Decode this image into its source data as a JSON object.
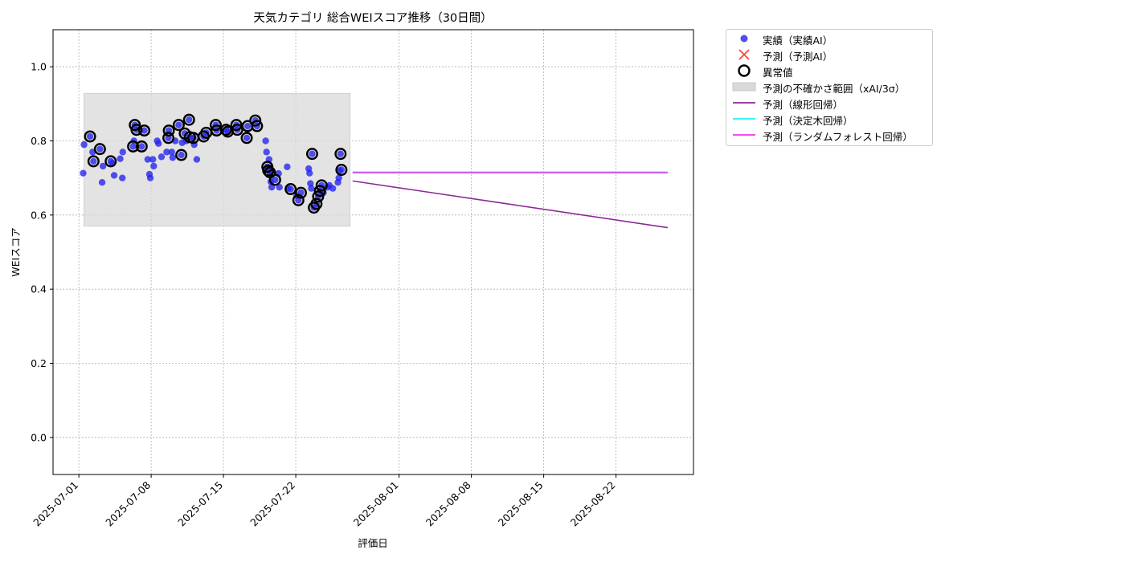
{
  "chart_data": {
    "type": "scatter",
    "title": "天気カテゴリ 総合WEIスコア推移（30日間）",
    "xlabel": "評価日",
    "ylabel": "WEIスコア",
    "xlim": [
      "2025-06-28T12:00",
      "2025-08-29T12:00"
    ],
    "ylim": [
      -0.1,
      1.1
    ],
    "y_ticks": [
      "0.0",
      "0.2",
      "0.4",
      "0.6",
      "0.8",
      "1.0"
    ],
    "x_ticks": [
      "2025-07-01",
      "2025-07-08",
      "2025-07-15",
      "2025-07-22",
      "2025-08-01",
      "2025-08-08",
      "2025-08-15",
      "2025-08-22"
    ],
    "grid": true,
    "legend_position": "outside-top-right",
    "colors": {
      "actual": "#2222ee",
      "predicted": "#ff4444",
      "anomaly": "#000000",
      "uncertainty": "#d9d9d9",
      "linear": "#8b2a96",
      "tree": "#22f2f2",
      "forest": "#ee33ee"
    },
    "uncertainty_band": {
      "x_start": "2025-07-01T12:00",
      "x_end": "2025-07-27T06:00",
      "y_low": 0.57,
      "y_high": 0.928
    },
    "series": [
      {
        "name": "実績（実績AI）",
        "kind": "scatter",
        "points": [
          [
            "2025-07-01T10:00",
            0.713
          ],
          [
            "2025-07-01T12:00",
            0.79
          ],
          [
            "2025-07-02T02:00",
            0.812
          ],
          [
            "2025-07-02T10:00",
            0.745
          ],
          [
            "2025-07-02T08:00",
            0.77
          ],
          [
            "2025-07-03T01:00",
            0.778
          ],
          [
            "2025-07-03T08:00",
            0.732
          ],
          [
            "2025-07-03T06:00",
            0.688
          ],
          [
            "2025-07-04T02:00",
            0.745
          ],
          [
            "2025-07-04T10:00",
            0.707
          ],
          [
            "2025-07-04T06:00",
            0.74
          ],
          [
            "2025-07-05T00:00",
            0.752
          ],
          [
            "2025-07-05T06:00",
            0.77
          ],
          [
            "2025-07-05T05:00",
            0.7
          ],
          [
            "2025-07-06T06:00",
            0.785
          ],
          [
            "2025-07-06T08:00",
            0.8
          ],
          [
            "2025-07-06T10:00",
            0.843
          ],
          [
            "2025-07-06T14:00",
            0.83
          ],
          [
            "2025-07-07T02:00",
            0.785
          ],
          [
            "2025-07-07T08:00",
            0.828
          ],
          [
            "2025-07-07T16:00",
            0.75
          ],
          [
            "2025-07-07T22:00",
            0.7
          ],
          [
            "2025-07-07T20:00",
            0.71
          ],
          [
            "2025-07-08T06:00",
            0.732
          ],
          [
            "2025-07-08T04:00",
            0.75
          ],
          [
            "2025-07-08T14:00",
            0.8
          ],
          [
            "2025-07-08T17:00",
            0.793
          ],
          [
            "2025-07-09T00:00",
            0.757
          ],
          [
            "2025-07-09T12:00",
            0.77
          ],
          [
            "2025-07-09T16:00",
            0.808
          ],
          [
            "2025-07-09T17:00",
            0.828
          ],
          [
            "2025-07-10T00:00",
            0.77
          ],
          [
            "2025-07-10T02:00",
            0.755
          ],
          [
            "2025-07-10T08:00",
            0.8
          ],
          [
            "2025-07-10T16:00",
            0.843
          ],
          [
            "2025-07-10T22:00",
            0.762
          ],
          [
            "2025-07-11T00:00",
            0.795
          ],
          [
            "2025-07-11T06:00",
            0.82
          ],
          [
            "2025-07-11T10:00",
            0.8
          ],
          [
            "2025-07-11T16:00",
            0.857
          ],
          [
            "2025-07-11T18:00",
            0.81
          ],
          [
            "2025-07-12T02:00",
            0.808
          ],
          [
            "2025-07-12T04:00",
            0.79
          ],
          [
            "2025-07-12T10:00",
            0.75
          ],
          [
            "2025-07-13T02:00",
            0.812
          ],
          [
            "2025-07-13T08:00",
            0.822
          ],
          [
            "2025-07-14T06:00",
            0.843
          ],
          [
            "2025-07-14T08:00",
            0.828
          ],
          [
            "2025-07-15T06:00",
            0.83
          ],
          [
            "2025-07-15T10:00",
            0.825
          ],
          [
            "2025-07-16T06:00",
            0.843
          ],
          [
            "2025-07-16T08:00",
            0.83
          ],
          [
            "2025-07-17T06:00",
            0.808
          ],
          [
            "2025-07-17T08:00",
            0.84
          ],
          [
            "2025-07-18T02:00",
            0.855
          ],
          [
            "2025-07-18T06:00",
            0.84
          ],
          [
            "2025-07-19T02:00",
            0.8
          ],
          [
            "2025-07-19T04:00",
            0.77
          ],
          [
            "2025-07-19T06:00",
            0.73
          ],
          [
            "2025-07-19T08:00",
            0.72
          ],
          [
            "2025-07-19T10:00",
            0.75
          ],
          [
            "2025-07-19T12:00",
            0.715
          ],
          [
            "2025-07-19T14:00",
            0.69
          ],
          [
            "2025-07-19T16:00",
            0.675
          ],
          [
            "2025-07-20T00:00",
            0.695
          ],
          [
            "2025-07-20T08:00",
            0.712
          ],
          [
            "2025-07-20T10:00",
            0.675
          ],
          [
            "2025-07-21T04:00",
            0.73
          ],
          [
            "2025-07-21T06:00",
            0.672
          ],
          [
            "2025-07-21T12:00",
            0.67
          ],
          [
            "2025-07-22T02:00",
            0.652
          ],
          [
            "2025-07-22T06:00",
            0.64
          ],
          [
            "2025-07-22T12:00",
            0.66
          ],
          [
            "2025-07-23T06:00",
            0.725
          ],
          [
            "2025-07-23T08:00",
            0.713
          ],
          [
            "2025-07-23T10:00",
            0.685
          ],
          [
            "2025-07-23T12:00",
            0.672
          ],
          [
            "2025-07-23T14:00",
            0.765
          ],
          [
            "2025-07-23T18:00",
            0.62
          ],
          [
            "2025-07-24T00:00",
            0.63
          ],
          [
            "2025-07-24T04:00",
            0.65
          ],
          [
            "2025-07-24T08:00",
            0.665
          ],
          [
            "2025-07-24T12:00",
            0.68
          ],
          [
            "2025-07-24T16:00",
            0.66
          ],
          [
            "2025-07-25T02:00",
            0.675
          ],
          [
            "2025-07-25T06:00",
            0.68
          ],
          [
            "2025-07-25T14:00",
            0.672
          ],
          [
            "2025-07-26T02:00",
            0.688
          ],
          [
            "2025-07-26T04:00",
            0.7
          ],
          [
            "2025-07-26T06:00",
            0.72
          ],
          [
            "2025-07-26T08:00",
            0.765
          ],
          [
            "2025-07-26T10:00",
            0.722
          ]
        ]
      },
      {
        "name": "予測（予測AI）",
        "kind": "cross",
        "points": []
      },
      {
        "name": "異常値",
        "kind": "ring",
        "points": [
          [
            "2025-07-02T02:00",
            0.812
          ],
          [
            "2025-07-02T10:00",
            0.745
          ],
          [
            "2025-07-03T01:00",
            0.778
          ],
          [
            "2025-07-04T02:00",
            0.745
          ],
          [
            "2025-07-06T06:00",
            0.785
          ],
          [
            "2025-07-06T10:00",
            0.843
          ],
          [
            "2025-07-06T14:00",
            0.83
          ],
          [
            "2025-07-07T02:00",
            0.785
          ],
          [
            "2025-07-07T08:00",
            0.828
          ],
          [
            "2025-07-09T16:00",
            0.808
          ],
          [
            "2025-07-09T17:00",
            0.828
          ],
          [
            "2025-07-10T16:00",
            0.843
          ],
          [
            "2025-07-10T22:00",
            0.762
          ],
          [
            "2025-07-11T06:00",
            0.82
          ],
          [
            "2025-07-11T16:00",
            0.857
          ],
          [
            "2025-07-11T18:00",
            0.81
          ],
          [
            "2025-07-12T02:00",
            0.808
          ],
          [
            "2025-07-13T02:00",
            0.812
          ],
          [
            "2025-07-13T08:00",
            0.822
          ],
          [
            "2025-07-14T06:00",
            0.843
          ],
          [
            "2025-07-14T08:00",
            0.828
          ],
          [
            "2025-07-15T06:00",
            0.83
          ],
          [
            "2025-07-15T10:00",
            0.825
          ],
          [
            "2025-07-16T06:00",
            0.843
          ],
          [
            "2025-07-16T08:00",
            0.83
          ],
          [
            "2025-07-17T06:00",
            0.808
          ],
          [
            "2025-07-17T08:00",
            0.84
          ],
          [
            "2025-07-18T02:00",
            0.855
          ],
          [
            "2025-07-18T06:00",
            0.84
          ],
          [
            "2025-07-19T06:00",
            0.73
          ],
          [
            "2025-07-19T08:00",
            0.72
          ],
          [
            "2025-07-19T12:00",
            0.715
          ],
          [
            "2025-07-20T00:00",
            0.695
          ],
          [
            "2025-07-21T12:00",
            0.67
          ],
          [
            "2025-07-22T06:00",
            0.64
          ],
          [
            "2025-07-22T12:00",
            0.66
          ],
          [
            "2025-07-23T14:00",
            0.765
          ],
          [
            "2025-07-23T18:00",
            0.62
          ],
          [
            "2025-07-24T00:00",
            0.63
          ],
          [
            "2025-07-24T04:00",
            0.65
          ],
          [
            "2025-07-24T08:00",
            0.665
          ],
          [
            "2025-07-24T12:00",
            0.68
          ],
          [
            "2025-07-26T08:00",
            0.765
          ],
          [
            "2025-07-26T10:00",
            0.722
          ]
        ]
      },
      {
        "name": "予測の不確かさ範囲（xAI/3σ）",
        "kind": "band"
      },
      {
        "name": "予測（線形回帰）",
        "kind": "line",
        "points": [
          [
            "2025-07-27T12:00",
            0.692
          ],
          [
            "2025-08-27T00:00",
            0.566
          ]
        ]
      },
      {
        "name": "予測（決定木回帰）",
        "kind": "line",
        "points": [
          [
            "2025-07-27T12:00",
            0.716
          ],
          [
            "2025-08-27T00:00",
            0.716
          ]
        ]
      },
      {
        "name": "予測（ランダムフォレスト回帰）",
        "kind": "line",
        "points": [
          [
            "2025-07-27T12:00",
            0.714
          ],
          [
            "2025-08-27T00:00",
            0.714
          ]
        ]
      }
    ]
  }
}
